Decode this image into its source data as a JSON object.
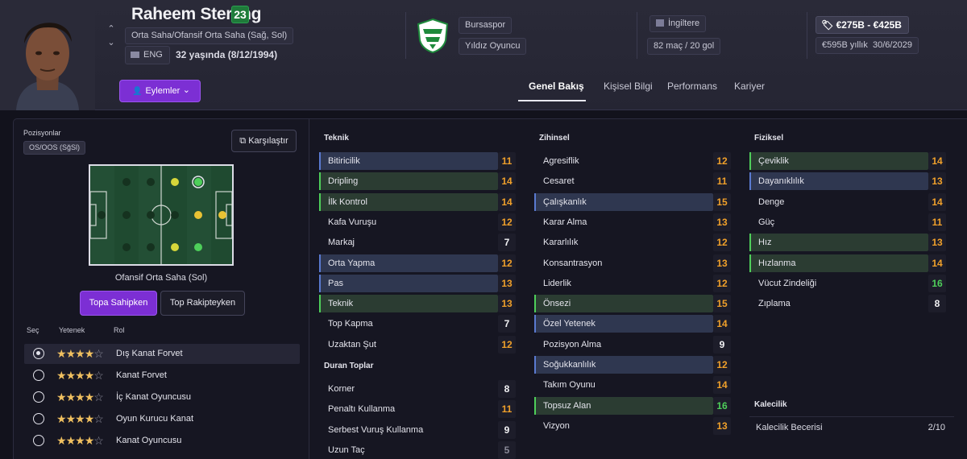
{
  "player": {
    "name": "Raheem Sterling",
    "number": "23",
    "positions": "Orta Saha/Ofansif Orta Saha (Sağ, Sol)",
    "nationality": "ENG",
    "age_line": "32 yaşında (8/12/1994)",
    "actions_label": "Eylemler"
  },
  "club": {
    "name": "Bursaspor",
    "status": "Yıldız Oyuncu",
    "colors": {
      "green": "#1e8a3c",
      "white": "#ffffff"
    }
  },
  "country": {
    "name": "İngiltere",
    "caps": "82 maç / 20 gol"
  },
  "value": {
    "range": "€275B - €425B",
    "wage": "€595B yıllık",
    "contract_end": "30/6/2029"
  },
  "tabs": [
    {
      "label": "Genel Bakış",
      "active": true
    },
    {
      "label": "Kişisel Bilgi",
      "active": false
    },
    {
      "label": "Performans",
      "active": false
    },
    {
      "label": "Kariyer",
      "active": false
    }
  ],
  "positions_panel": {
    "title": "Pozisyonlar",
    "chip": "OS/OOS (SğSl)",
    "compare_label": "Karşılaştır",
    "selected_position": "Ofansif Orta Saha (Sol)",
    "toggle_on": "Topa Sahipken",
    "toggle_off": "Top Rakipteyken",
    "headers": {
      "select": "Seç",
      "ability": "Yetenek",
      "role": "Rol"
    }
  },
  "roles": [
    {
      "name": "Dış Kanat Forvet",
      "stars": 4,
      "selected": true
    },
    {
      "name": "Kanat Forvet",
      "stars": 4,
      "selected": false
    },
    {
      "name": "İç Kanat Oyuncusu",
      "stars": 4,
      "selected": false
    },
    {
      "name": "Oyun Kurucu Kanat",
      "stars": 4,
      "selected": false
    },
    {
      "name": "Kanat Oyuncusu",
      "stars": 4,
      "selected": false
    }
  ],
  "attributes": {
    "technical_title": "Teknik",
    "technical": [
      {
        "name": "Bitiricilik",
        "value": "11",
        "hl": "blue",
        "tone": "o"
      },
      {
        "name": "Dripling",
        "value": "14",
        "hl": "green",
        "tone": "o"
      },
      {
        "name": "İlk Kontrol",
        "value": "14",
        "hl": "green",
        "tone": "o"
      },
      {
        "name": "Kafa Vuruşu",
        "value": "12",
        "hl": "plain",
        "tone": "o"
      },
      {
        "name": "Markaj",
        "value": "7",
        "hl": "plain",
        "tone": "w"
      },
      {
        "name": "Orta Yapma",
        "value": "12",
        "hl": "blue",
        "tone": "o"
      },
      {
        "name": "Pas",
        "value": "13",
        "hl": "blue",
        "tone": "o"
      },
      {
        "name": "Teknik",
        "value": "13",
        "hl": "green",
        "tone": "o"
      },
      {
        "name": "Top Kapma",
        "value": "7",
        "hl": "plain",
        "tone": "w"
      },
      {
        "name": "Uzaktan Şut",
        "value": "12",
        "hl": "plain",
        "tone": "o"
      }
    ],
    "set_pieces_title": "Duran Toplar",
    "set_pieces": [
      {
        "name": "Korner",
        "value": "8",
        "hl": "plain",
        "tone": "w"
      },
      {
        "name": "Penaltı Kullanma",
        "value": "11",
        "hl": "plain",
        "tone": "o"
      },
      {
        "name": "Serbest Vuruş Kullanma",
        "value": "9",
        "hl": "plain",
        "tone": "w"
      },
      {
        "name": "Uzun Taç",
        "value": "5",
        "hl": "plain",
        "tone": "gr"
      }
    ],
    "mental_title": "Zihinsel",
    "mental": [
      {
        "name": "Agresiflik",
        "value": "12",
        "hl": "plain",
        "tone": "o"
      },
      {
        "name": "Cesaret",
        "value": "11",
        "hl": "plain",
        "tone": "o"
      },
      {
        "name": "Çalışkanlık",
        "value": "15",
        "hl": "blue",
        "tone": "o"
      },
      {
        "name": "Karar Alma",
        "value": "13",
        "hl": "plain",
        "tone": "o"
      },
      {
        "name": "Kararlılık",
        "value": "12",
        "hl": "plain",
        "tone": "o"
      },
      {
        "name": "Konsantrasyon",
        "value": "13",
        "hl": "plain",
        "tone": "o"
      },
      {
        "name": "Liderlik",
        "value": "12",
        "hl": "plain",
        "tone": "o"
      },
      {
        "name": "Önsezi",
        "value": "15",
        "hl": "green",
        "tone": "o"
      },
      {
        "name": "Özel Yetenek",
        "value": "14",
        "hl": "blue",
        "tone": "o"
      },
      {
        "name": "Pozisyon Alma",
        "value": "9",
        "hl": "plain",
        "tone": "w"
      },
      {
        "name": "Soğukkanlılık",
        "value": "12",
        "hl": "blue",
        "tone": "o"
      },
      {
        "name": "Takım Oyunu",
        "value": "14",
        "hl": "plain",
        "tone": "o"
      },
      {
        "name": "Topsuz Alan",
        "value": "16",
        "hl": "green",
        "tone": "g"
      },
      {
        "name": "Vizyon",
        "value": "13",
        "hl": "plain",
        "tone": "o"
      }
    ],
    "physical_title": "Fiziksel",
    "physical": [
      {
        "name": "Çeviklik",
        "value": "14",
        "hl": "green",
        "tone": "o"
      },
      {
        "name": "Dayanıklılık",
        "value": "13",
        "hl": "blue",
        "tone": "o"
      },
      {
        "name": "Denge",
        "value": "14",
        "hl": "plain",
        "tone": "o"
      },
      {
        "name": "Güç",
        "value": "11",
        "hl": "plain",
        "tone": "o"
      },
      {
        "name": "Hız",
        "value": "13",
        "hl": "green",
        "tone": "o"
      },
      {
        "name": "Hızlanma",
        "value": "14",
        "hl": "green",
        "tone": "o"
      },
      {
        "name": "Vücut Zindeliği",
        "value": "16",
        "hl": "plain",
        "tone": "g"
      },
      {
        "name": "Zıplama",
        "value": "8",
        "hl": "plain",
        "tone": "w"
      }
    ],
    "gk_title": "Kalecilik",
    "gk_label": "Kalecilik Becerisi",
    "gk_value": "2/10"
  },
  "colors": {
    "accent": "#7c2fd4",
    "orange_value": "#f0a02a",
    "green_value": "#4ecf5a"
  }
}
